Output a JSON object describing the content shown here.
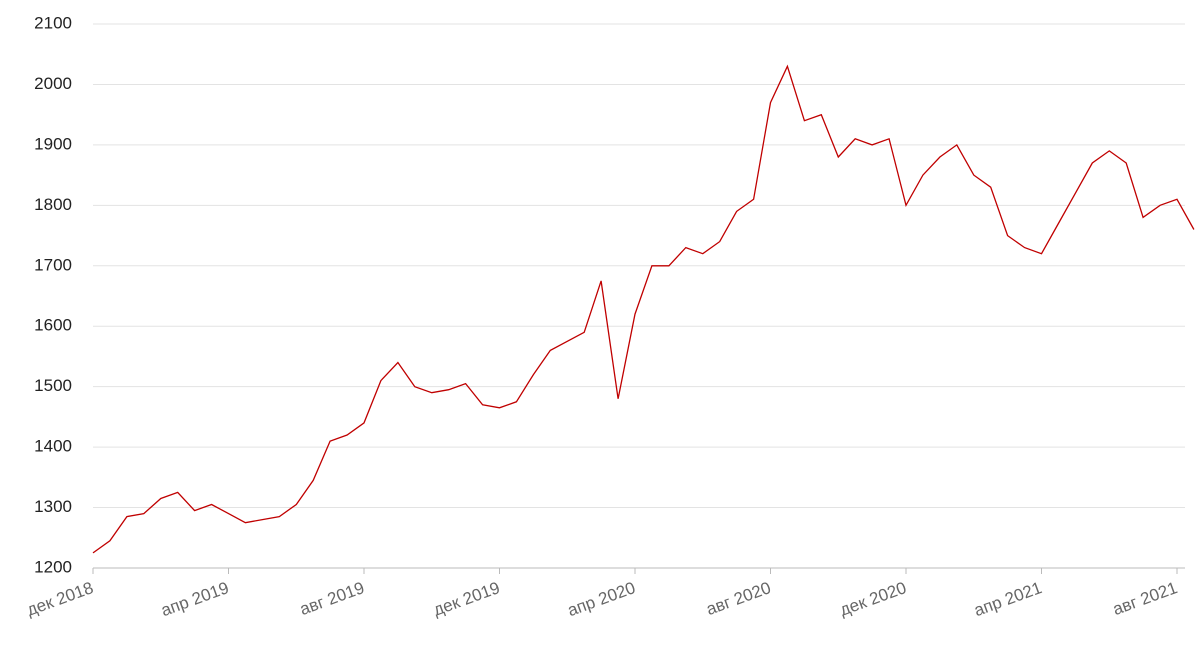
{
  "chart_data": {
    "type": "line",
    "categories": [
      "дек 2018",
      null,
      null,
      null,
      null,
      null,
      null,
      null,
      "апр 2019",
      null,
      null,
      null,
      null,
      null,
      null,
      null,
      "авг 2019",
      null,
      null,
      null,
      null,
      null,
      null,
      null,
      "дек 2019",
      null,
      null,
      null,
      null,
      null,
      null,
      null,
      "апр 2020",
      null,
      null,
      null,
      null,
      null,
      null,
      null,
      "авг 2020",
      null,
      null,
      null,
      null,
      null,
      null,
      null,
      "дек 2020",
      null,
      null,
      null,
      null,
      null,
      null,
      null,
      "апр 2021",
      null,
      null,
      null,
      null,
      null,
      null,
      null,
      "авг 2021",
      null
    ],
    "series": [
      {
        "color": "#c00000",
        "values": [
          1225,
          1245,
          1285,
          1290,
          1315,
          1325,
          1295,
          1305,
          1290,
          1275,
          1280,
          1285,
          1305,
          1345,
          1410,
          1420,
          1440,
          1510,
          1540,
          1500,
          1490,
          1495,
          1505,
          1470,
          1465,
          1475,
          1520,
          1560,
          1575,
          1590,
          1675,
          1480,
          1620,
          1700,
          1700,
          1730,
          1720,
          1740,
          1790,
          1810,
          1970,
          2030,
          1940,
          1950,
          1880,
          1910,
          1900,
          1910,
          1800,
          1850,
          1880,
          1900,
          1850,
          1830,
          1750,
          1730,
          1720,
          1770,
          1820,
          1870,
          1890,
          1870,
          1780,
          1800,
          1810,
          1760
        ]
      }
    ],
    "ylim": [
      1200,
      2100
    ],
    "yticks": [
      1200,
      1300,
      1400,
      1500,
      1600,
      1700,
      1800,
      1900,
      2000,
      2100
    ],
    "grid": true
  }
}
